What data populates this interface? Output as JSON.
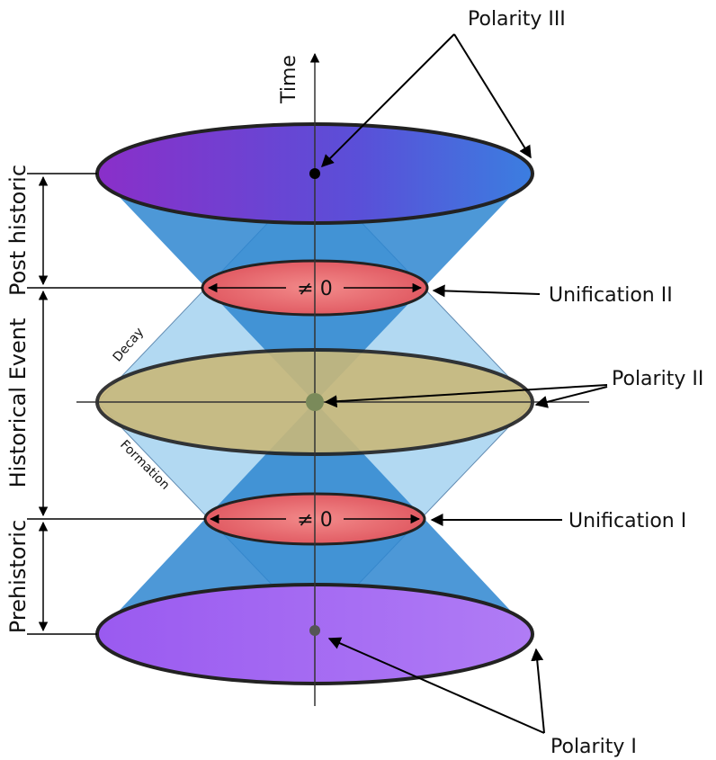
{
  "axis": {
    "label": "Time"
  },
  "periods": [
    "Post historic",
    "Historical Event",
    "Prehistoric"
  ],
  "callouts": {
    "polarity_iii": "Polarity III",
    "unification_ii": "Unification II",
    "polarity_ii": "Polarity II",
    "unification_i": "Unification I",
    "polarity_i": "Polarity I"
  },
  "ring_labels": [
    "≠ 0",
    "≠ 0"
  ],
  "cone_labels": {
    "decay": "Decay",
    "formation": "Formation"
  }
}
